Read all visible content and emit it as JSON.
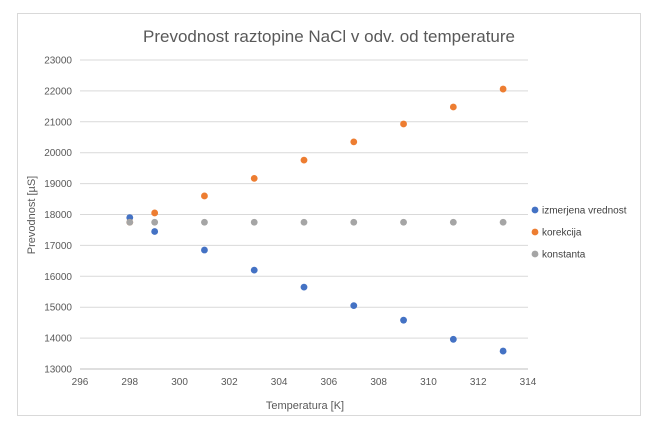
{
  "chart_data": {
    "type": "scatter",
    "title": "Prevodnost raztopine NaCl v odv. od temperature",
    "xlabel": "Temperatura [K]",
    "ylabel": "Prevodnost [µS]",
    "xlim": [
      296,
      314
    ],
    "ylim": [
      13000,
      23000
    ],
    "xticks": [
      296,
      298,
      300,
      302,
      304,
      306,
      308,
      310,
      312,
      314
    ],
    "yticks": [
      13000,
      14000,
      15000,
      16000,
      17000,
      18000,
      19000,
      20000,
      21000,
      22000,
      23000
    ],
    "grid": "horizontal",
    "legend_position": "right",
    "series": [
      {
        "name": "izmerjena vrednost",
        "color": "#4472c4",
        "x": [
          298,
          299,
          301,
          303,
          305,
          307,
          309,
          311,
          313
        ],
        "y": [
          17900,
          17450,
          16850,
          16200,
          15650,
          15050,
          14580,
          13960,
          13580
        ]
      },
      {
        "name": "korekcija",
        "color": "#ed7d31",
        "x": [
          298,
          299,
          301,
          303,
          305,
          307,
          309,
          311,
          313
        ],
        "y": [
          17750,
          18050,
          18600,
          19170,
          19760,
          20350,
          20930,
          21480,
          22060
        ]
      },
      {
        "name": "konstanta",
        "color": "#a5a5a5",
        "x": [
          298,
          299,
          301,
          303,
          305,
          307,
          309,
          311,
          313
        ],
        "y": [
          17750,
          17750,
          17750,
          17750,
          17750,
          17750,
          17750,
          17750,
          17750
        ]
      }
    ]
  }
}
